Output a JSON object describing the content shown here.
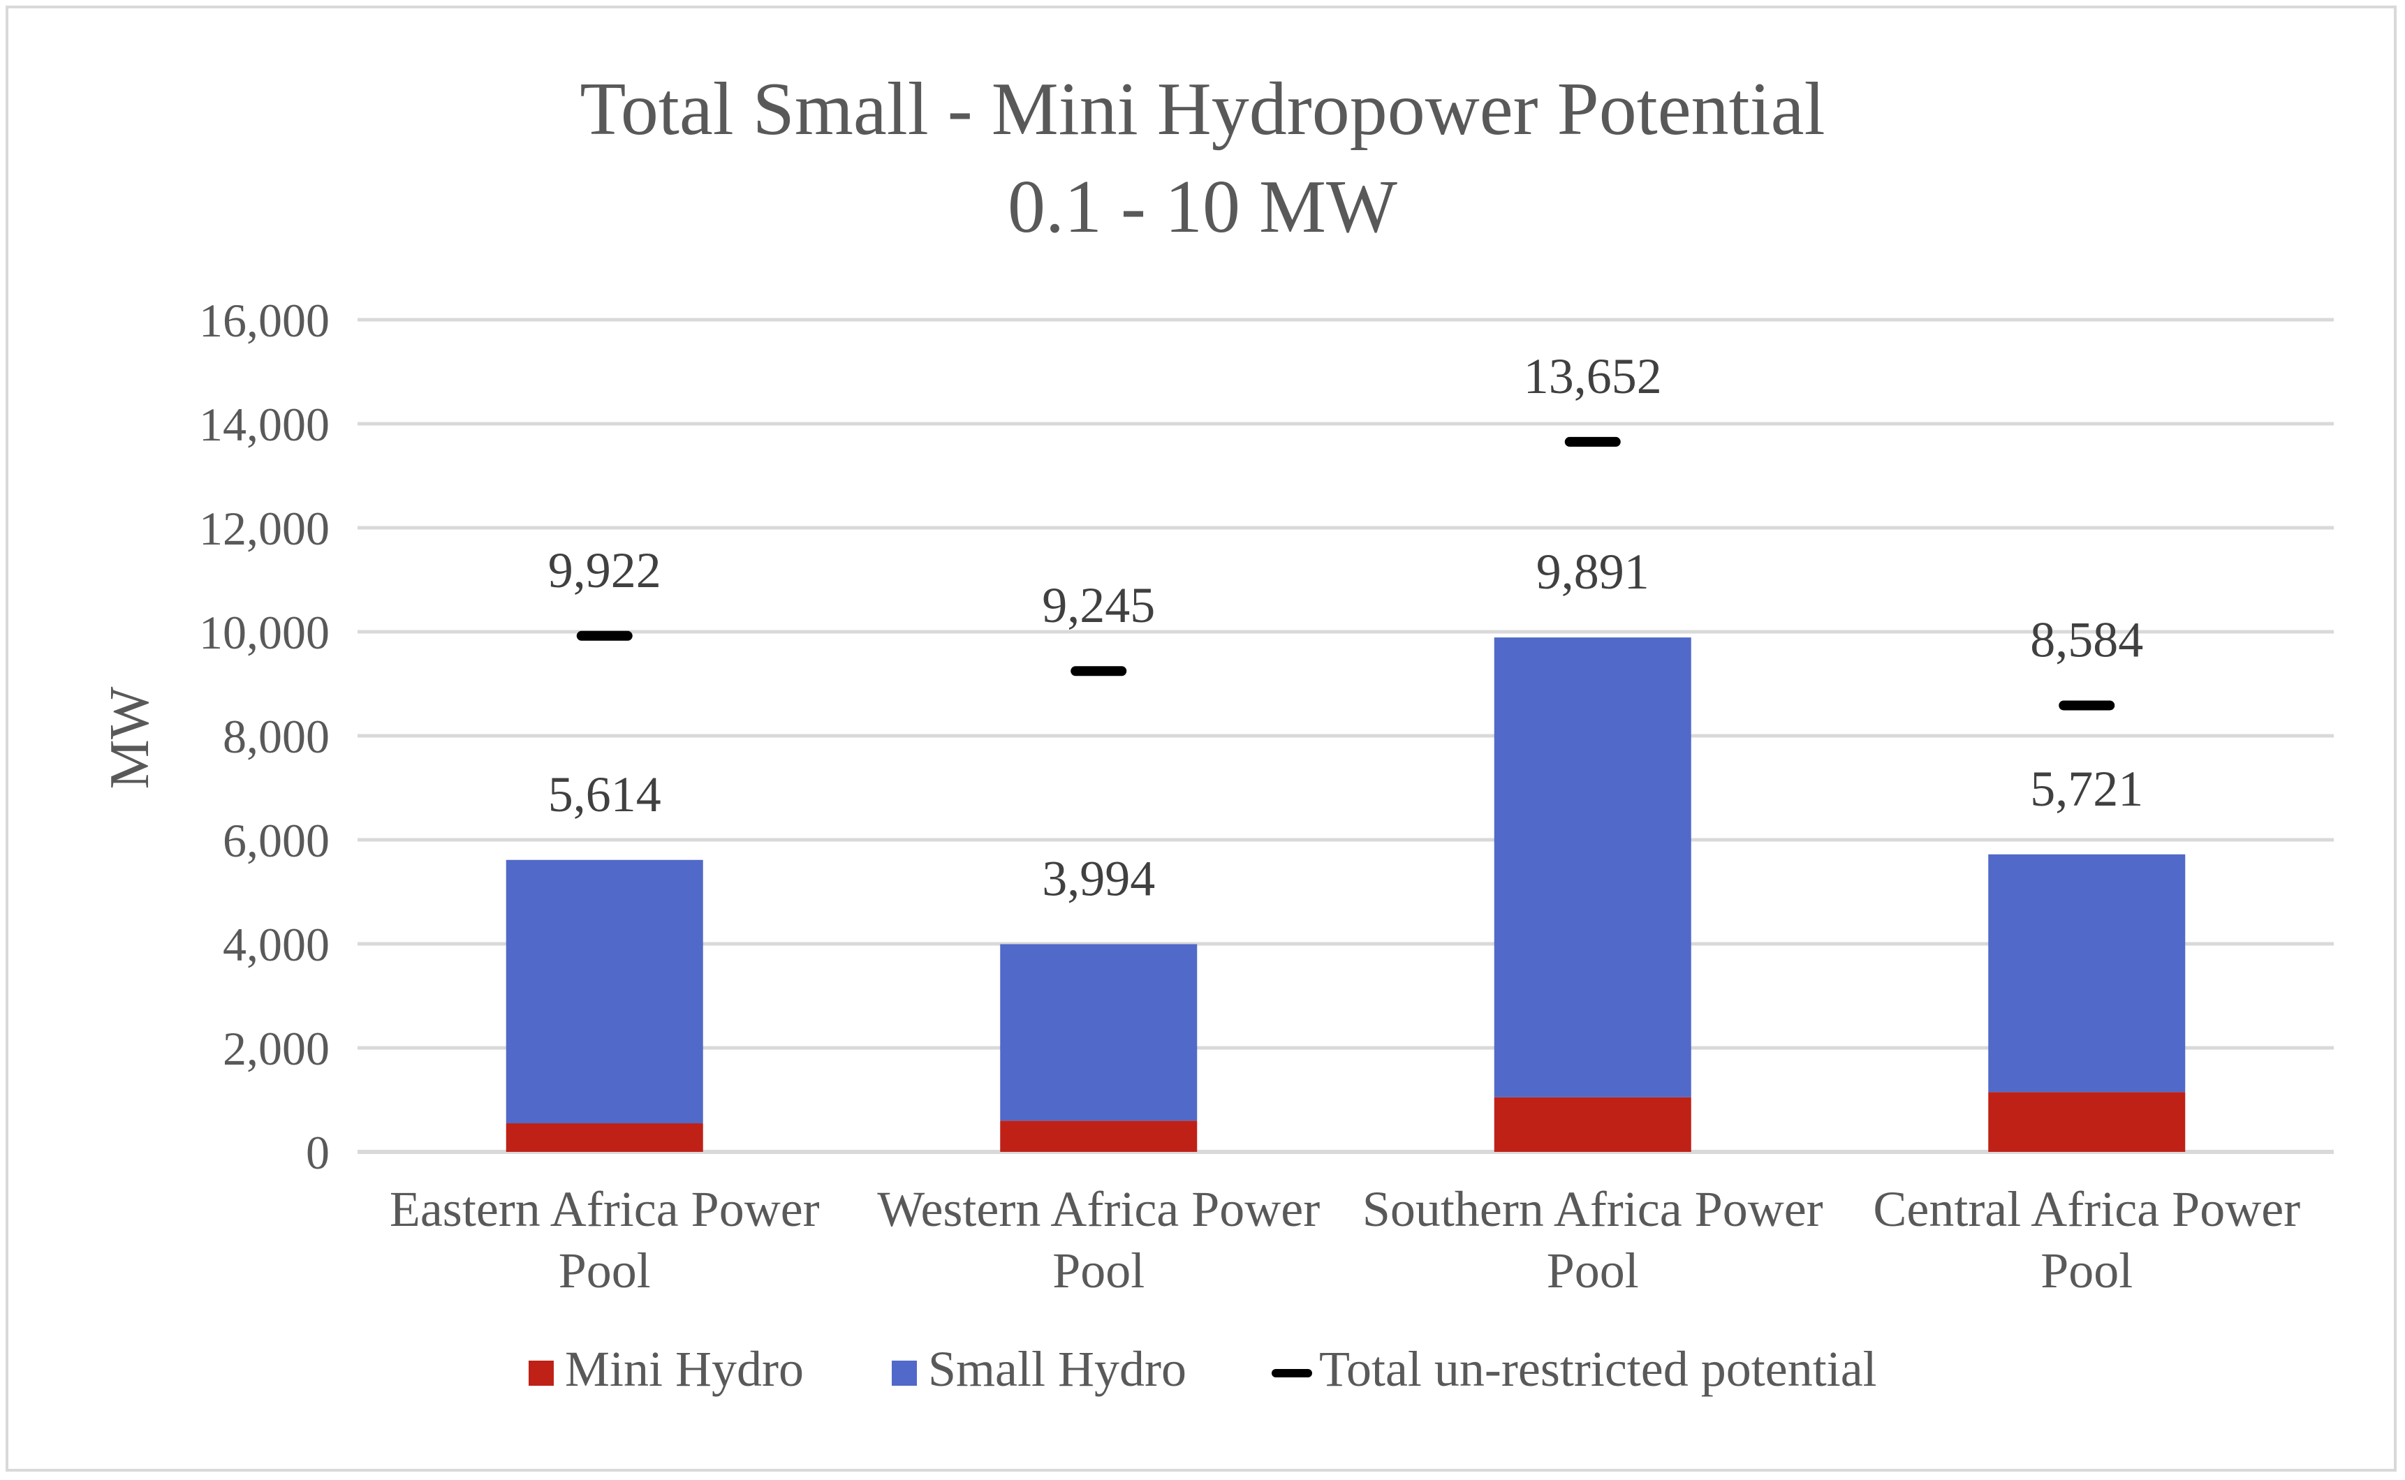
{
  "chart_data": {
    "type": "bar",
    "stacked": true,
    "title_lines": [
      "Total Small - Mini Hydropower Potential",
      "0.1 - 10 MW"
    ],
    "ylabel": "MW",
    "xlabel": "",
    "ylim": [
      0,
      16000
    ],
    "yticks": [
      0,
      2000,
      4000,
      6000,
      8000,
      10000,
      12000,
      14000,
      16000
    ],
    "ytick_labels": [
      "0",
      "2,000",
      "4,000",
      "6,000",
      "8,000",
      "10,000",
      "12,000",
      "14,000",
      "16,000"
    ],
    "gridlines": true,
    "legend_position": "bottom",
    "categories": [
      [
        "Eastern Africa Power",
        "Pool"
      ],
      [
        "Western Africa Power",
        "Pool"
      ],
      [
        "Southern Africa Power",
        "Pool"
      ],
      [
        "Central Africa Power",
        "Pool"
      ]
    ],
    "series": [
      {
        "name": "Mini Hydro",
        "color": "#bf2117",
        "kind": "bar",
        "values": [
          550,
          600,
          1050,
          1150
        ]
      },
      {
        "name": "Small Hydro",
        "color": "#5169c8",
        "kind": "bar",
        "values": [
          5064,
          3394,
          8841,
          4571
        ]
      },
      {
        "name": "Total un-restricted potential",
        "color": "#000000",
        "kind": "marker",
        "values": [
          9922,
          9245,
          13652,
          8584
        ]
      }
    ],
    "stack_total_labels": [
      "5,614",
      "3,994",
      "9,891",
      "5,721"
    ],
    "marker_labels": [
      "9,922",
      "9,245",
      "13,652",
      "8,584"
    ],
    "text_color": "#595959",
    "grid_color": "#d9d9d9"
  }
}
